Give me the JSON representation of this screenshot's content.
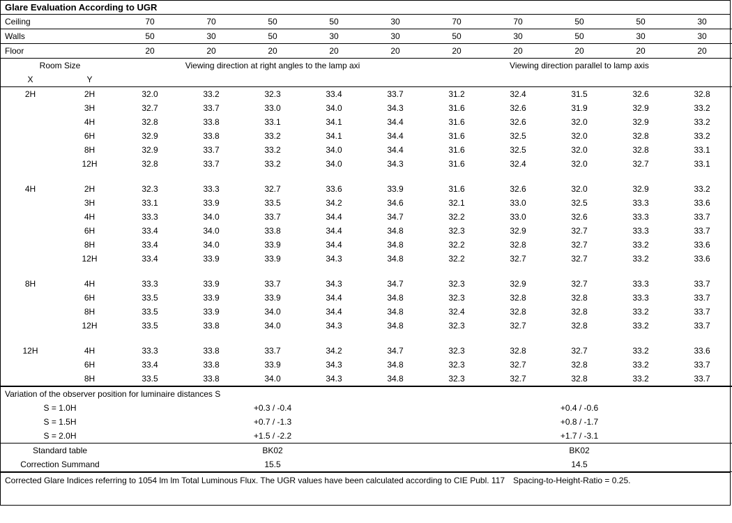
{
  "title": "Glare Evaluation According to UGR",
  "header_rows": {
    "ceiling": {
      "label": "Ceiling",
      "vals": [
        "70",
        "70",
        "50",
        "50",
        "30",
        "70",
        "70",
        "50",
        "50",
        "30"
      ]
    },
    "walls": {
      "label": "Walls",
      "vals": [
        "50",
        "30",
        "50",
        "30",
        "30",
        "50",
        "30",
        "50",
        "30",
        "30"
      ]
    },
    "floor": {
      "label": "Floor",
      "vals": [
        "20",
        "20",
        "20",
        "20",
        "20",
        "20",
        "20",
        "20",
        "20",
        "20"
      ]
    }
  },
  "room_size_label": "Room Size",
  "x_label": "X",
  "y_label": "Y",
  "dir_right": "Viewing direction at right angles to the lamp axi",
  "dir_parallel": "Viewing direction parallel to lamp axis",
  "groups": [
    {
      "x": "2H",
      "rows": [
        {
          "y": "2H",
          "v": [
            "32.0",
            "33.2",
            "32.3",
            "33.4",
            "33.7",
            "31.2",
            "32.4",
            "31.5",
            "32.6",
            "32.8"
          ]
        },
        {
          "y": "3H",
          "v": [
            "32.7",
            "33.7",
            "33.0",
            "34.0",
            "34.3",
            "31.6",
            "32.6",
            "31.9",
            "32.9",
            "33.2"
          ]
        },
        {
          "y": "4H",
          "v": [
            "32.8",
            "33.8",
            "33.1",
            "34.1",
            "34.4",
            "31.6",
            "32.6",
            "32.0",
            "32.9",
            "33.2"
          ]
        },
        {
          "y": "6H",
          "v": [
            "32.9",
            "33.8",
            "33.2",
            "34.1",
            "34.4",
            "31.6",
            "32.5",
            "32.0",
            "32.8",
            "33.2"
          ]
        },
        {
          "y": "8H",
          "v": [
            "32.9",
            "33.7",
            "33.2",
            "34.0",
            "34.4",
            "31.6",
            "32.5",
            "32.0",
            "32.8",
            "33.1"
          ]
        },
        {
          "y": "12H",
          "v": [
            "32.8",
            "33.7",
            "33.2",
            "34.0",
            "34.3",
            "31.6",
            "32.4",
            "32.0",
            "32.7",
            "33.1"
          ]
        }
      ]
    },
    {
      "x": "4H",
      "rows": [
        {
          "y": "2H",
          "v": [
            "32.3",
            "33.3",
            "32.7",
            "33.6",
            "33.9",
            "31.6",
            "32.6",
            "32.0",
            "32.9",
            "33.2"
          ]
        },
        {
          "y": "3H",
          "v": [
            "33.1",
            "33.9",
            "33.5",
            "34.2",
            "34.6",
            "32.1",
            "33.0",
            "32.5",
            "33.3",
            "33.6"
          ]
        },
        {
          "y": "4H",
          "v": [
            "33.3",
            "34.0",
            "33.7",
            "34.4",
            "34.7",
            "32.2",
            "33.0",
            "32.6",
            "33.3",
            "33.7"
          ]
        },
        {
          "y": "6H",
          "v": [
            "33.4",
            "34.0",
            "33.8",
            "34.4",
            "34.8",
            "32.3",
            "32.9",
            "32.7",
            "33.3",
            "33.7"
          ]
        },
        {
          "y": "8H",
          "v": [
            "33.4",
            "34.0",
            "33.9",
            "34.4",
            "34.8",
            "32.2",
            "32.8",
            "32.7",
            "33.2",
            "33.6"
          ]
        },
        {
          "y": "12H",
          "v": [
            "33.4",
            "33.9",
            "33.9",
            "34.3",
            "34.8",
            "32.2",
            "32.7",
            "32.7",
            "33.2",
            "33.6"
          ]
        }
      ]
    },
    {
      "x": "8H",
      "rows": [
        {
          "y": "4H",
          "v": [
            "33.3",
            "33.9",
            "33.7",
            "34.3",
            "34.7",
            "32.3",
            "32.9",
            "32.7",
            "33.3",
            "33.7"
          ]
        },
        {
          "y": "6H",
          "v": [
            "33.5",
            "33.9",
            "33.9",
            "34.4",
            "34.8",
            "32.3",
            "32.8",
            "32.8",
            "33.3",
            "33.7"
          ]
        },
        {
          "y": "8H",
          "v": [
            "33.5",
            "33.9",
            "34.0",
            "34.4",
            "34.8",
            "32.4",
            "32.8",
            "32.8",
            "33.2",
            "33.7"
          ]
        },
        {
          "y": "12H",
          "v": [
            "33.5",
            "33.8",
            "34.0",
            "34.3",
            "34.8",
            "32.3",
            "32.7",
            "32.8",
            "33.2",
            "33.7"
          ]
        }
      ]
    },
    {
      "x": "12H",
      "rows": [
        {
          "y": "4H",
          "v": [
            "33.3",
            "33.8",
            "33.7",
            "34.2",
            "34.7",
            "32.3",
            "32.8",
            "32.7",
            "33.2",
            "33.6"
          ]
        },
        {
          "y": "6H",
          "v": [
            "33.4",
            "33.8",
            "33.9",
            "34.3",
            "34.8",
            "32.3",
            "32.7",
            "32.8",
            "33.2",
            "33.7"
          ]
        },
        {
          "y": "8H",
          "v": [
            "33.5",
            "33.8",
            "34.0",
            "34.3",
            "34.8",
            "32.3",
            "32.7",
            "32.8",
            "33.2",
            "33.7"
          ]
        }
      ]
    }
  ],
  "variation_title": "Variation of the observer position for luminaire distances S",
  "variation_rows": [
    {
      "s": "S = 1.0H",
      "a": "+0.3 / -0.4",
      "b": "+0.4 / -0.6"
    },
    {
      "s": "S = 1.5H",
      "a": "+0.7 / -1.3",
      "b": "+0.8 / -1.7"
    },
    {
      "s": "S = 2.0H",
      "a": "+1.5 / -2.2",
      "b": "+1.7 / -3.1"
    }
  ],
  "std_table_label": "Standard table",
  "std_table_a": "BK02",
  "std_table_b": "BK02",
  "corr_label": "Correction Summand",
  "corr_a": "15.5",
  "corr_b": "14.5",
  "footer": "Corrected Glare Indices referring to 1054 lm lm Total Luminous Flux. The UGR values have been calculated according to CIE Publ. 117 Spacing-to-Height-Ratio = 0.25."
}
